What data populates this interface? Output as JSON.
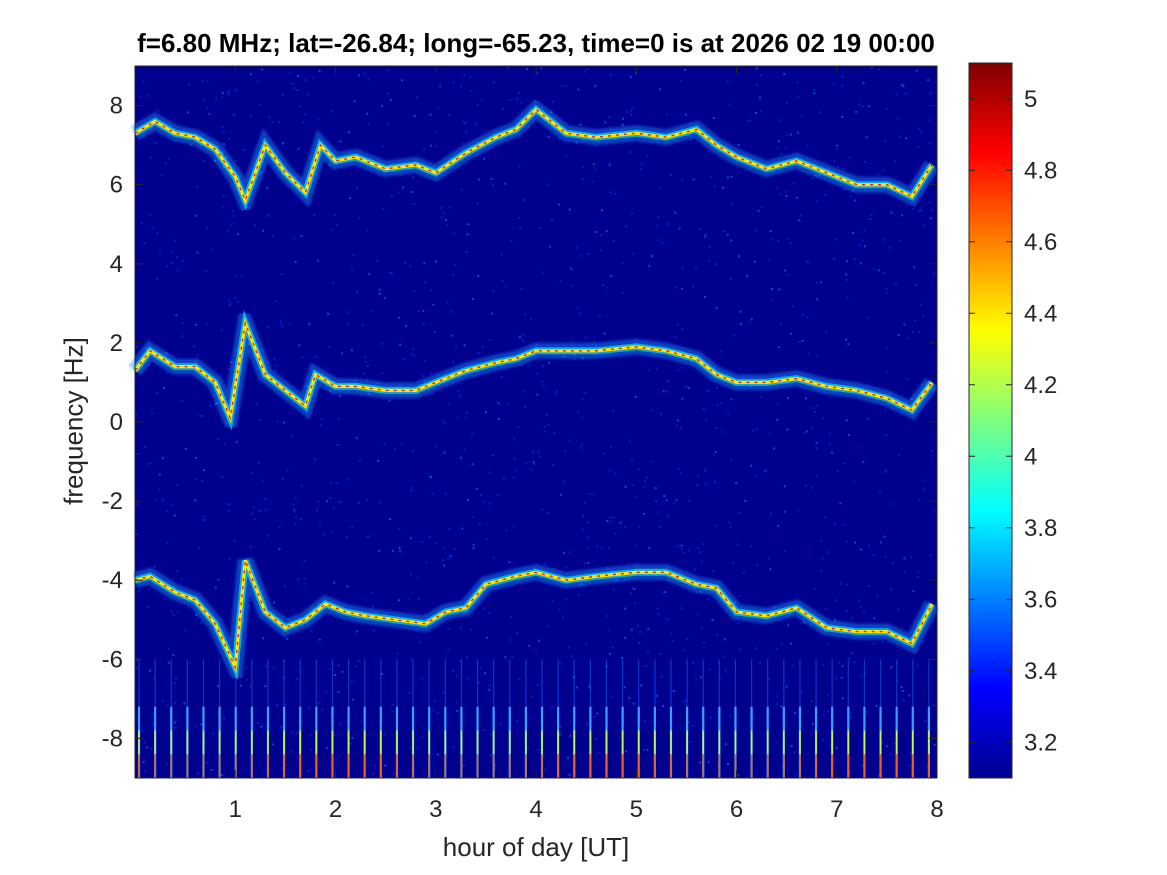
{
  "chart_data": {
    "type": "heatmap",
    "title": "f=6.80 MHz;  lat=-26.84; long=-65.23, time=0 is at 2026 02 19 00:00",
    "xlabel": "hour of day [UT]",
    "ylabel": "frequency [Hz]",
    "xlim": [
      0,
      8
    ],
    "ylim": [
      -9,
      9
    ],
    "xticks": [
      "1",
      "2",
      "3",
      "4",
      "5",
      "6",
      "7",
      "8"
    ],
    "yticks": [
      "-8",
      "-6",
      "-4",
      "-2",
      "0",
      "2",
      "4",
      "6",
      "8"
    ],
    "colorbar": {
      "colormap": "jet",
      "range": [
        3.1,
        5.1
      ],
      "ticks": [
        "3.2",
        "3.4",
        "3.6",
        "3.8",
        "4",
        "4.2",
        "4.4",
        "4.6",
        "4.8",
        "5"
      ]
    },
    "series": [
      {
        "x": [
          0,
          0.2,
          0.4,
          0.6,
          0.8,
          1.0,
          1.1,
          1.3,
          1.5,
          1.7,
          1.85,
          2.0,
          2.2,
          2.5,
          2.8,
          3.0,
          3.3,
          3.6,
          3.8,
          4.0,
          4.3,
          4.6,
          5.0,
          5.3,
          5.6,
          5.8,
          6.0,
          6.3,
          6.6,
          6.9,
          7.2,
          7.5,
          7.75,
          7.95
        ],
        "y": [
          7.3,
          7.6,
          7.3,
          7.2,
          6.9,
          6.2,
          5.6,
          7.0,
          6.3,
          5.8,
          7.0,
          6.6,
          6.7,
          6.4,
          6.5,
          6.3,
          6.8,
          7.2,
          7.4,
          7.9,
          7.3,
          7.2,
          7.3,
          7.2,
          7.4,
          7.0,
          6.7,
          6.4,
          6.6,
          6.3,
          6.0,
          6.0,
          5.7,
          6.5
        ]
      },
      {
        "x": [
          0,
          0.15,
          0.4,
          0.6,
          0.8,
          0.95,
          1.1,
          1.3,
          1.5,
          1.7,
          1.8,
          2.0,
          2.2,
          2.5,
          2.8,
          3.0,
          3.3,
          3.6,
          3.8,
          4.0,
          4.3,
          4.6,
          5.0,
          5.3,
          5.6,
          5.8,
          6.0,
          6.3,
          6.6,
          6.9,
          7.2,
          7.5,
          7.75,
          7.95
        ],
        "y": [
          1.3,
          1.8,
          1.4,
          1.4,
          1.0,
          0.1,
          2.5,
          1.2,
          0.8,
          0.4,
          1.2,
          0.9,
          0.9,
          0.8,
          0.8,
          1.0,
          1.3,
          1.5,
          1.6,
          1.8,
          1.8,
          1.8,
          1.9,
          1.8,
          1.6,
          1.2,
          1.0,
          1.0,
          1.1,
          0.9,
          0.8,
          0.6,
          0.3,
          1.0
        ]
      },
      {
        "x": [
          0,
          0.15,
          0.4,
          0.6,
          0.8,
          1.0,
          1.1,
          1.3,
          1.5,
          1.7,
          1.9,
          2.1,
          2.3,
          2.6,
          2.9,
          3.1,
          3.3,
          3.5,
          3.8,
          4.0,
          4.3,
          4.6,
          5.0,
          5.3,
          5.6,
          5.8,
          6.0,
          6.3,
          6.6,
          6.9,
          7.2,
          7.5,
          7.75,
          7.95
        ],
        "y": [
          -4.0,
          -3.9,
          -4.3,
          -4.5,
          -5.1,
          -6.2,
          -3.5,
          -4.8,
          -5.2,
          -5.0,
          -4.6,
          -4.8,
          -4.9,
          -5.0,
          -5.1,
          -4.8,
          -4.7,
          -4.1,
          -3.9,
          -3.8,
          -4.0,
          -3.9,
          -3.8,
          -3.8,
          -4.1,
          -4.2,
          -4.8,
          -4.9,
          -4.7,
          -5.2,
          -5.3,
          -5.3,
          -5.6,
          -4.6
        ]
      }
    ]
  }
}
